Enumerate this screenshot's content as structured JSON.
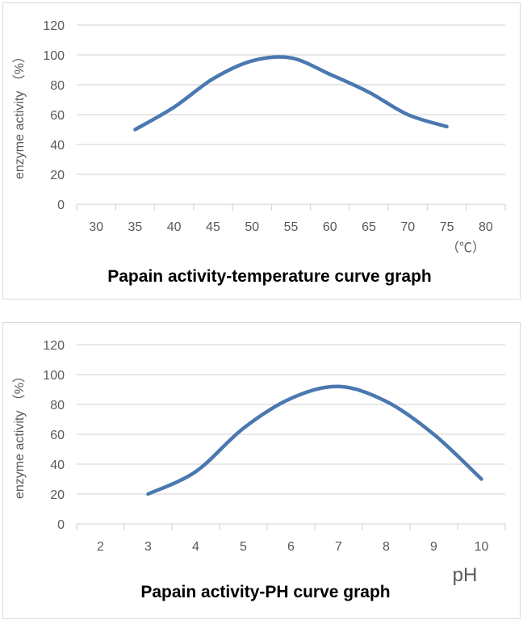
{
  "chart_data": [
    {
      "type": "line",
      "title": "Papain activity-temperature curve graph",
      "xlabel": "（℃）",
      "ylabel": "enzyme activity （%）",
      "categories": [
        "30",
        "35",
        "40",
        "45",
        "50",
        "55",
        "60",
        "65",
        "70",
        "75",
        "80"
      ],
      "x": [
        35,
        40,
        45,
        50,
        55,
        60,
        65,
        70,
        75
      ],
      "values": [
        50,
        65,
        84,
        96,
        98,
        87,
        75,
        60,
        52
      ],
      "yticks": [
        "0",
        "20",
        "40",
        "60",
        "80",
        "100",
        "120"
      ],
      "ylim": [
        0,
        120
      ],
      "grid": true,
      "color": "#4a78b0"
    },
    {
      "type": "line",
      "title": "Papain activity-PH  curve graph",
      "xlabel": "pH",
      "ylabel": "enzyme activity （%）",
      "categories": [
        "2",
        "3",
        "4",
        "5",
        "6",
        "7",
        "8",
        "9",
        "10"
      ],
      "x": [
        3,
        4,
        5,
        6,
        7,
        8,
        9,
        10
      ],
      "values": [
        20,
        35,
        64,
        84,
        92,
        82,
        60,
        30
      ],
      "yticks": [
        "0",
        "20",
        "40",
        "60",
        "80",
        "100",
        "120"
      ],
      "ylim": [
        0,
        120
      ],
      "grid": true,
      "color": "#4a78b0"
    }
  ]
}
